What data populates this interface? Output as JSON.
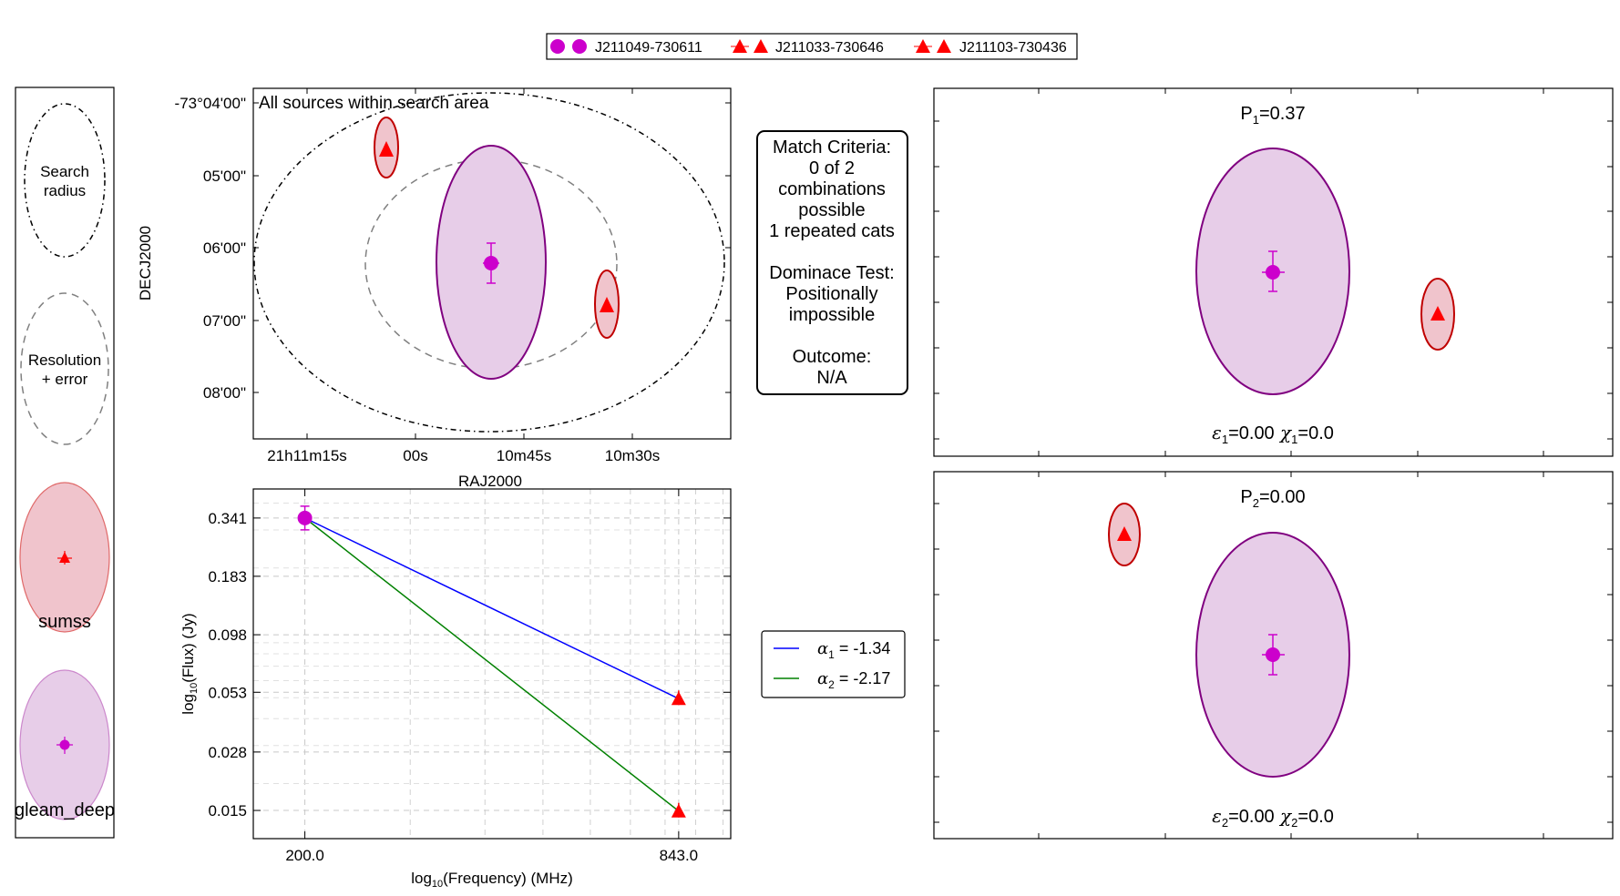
{
  "legend_top": {
    "entries": [
      {
        "label": "J211049-730611",
        "marker": "circle",
        "color": "#cc00cc"
      },
      {
        "label": "J211033-730646",
        "marker": "triangle",
        "color": "#ff0000"
      },
      {
        "label": "J211103-730436",
        "marker": "triangle",
        "color": "#ff0000"
      }
    ]
  },
  "key_panel": {
    "search_label": [
      "Search",
      "radius"
    ],
    "resolution_label": [
      "Resolution",
      "+ error"
    ],
    "sumss_label": "sumss",
    "gleam_label": "gleam_deep"
  },
  "sky_panel": {
    "annotation": "All sources within search area",
    "xlabel": "RAJ2000",
    "ylabel": "DECJ2000",
    "xticks": [
      "21h11m15s",
      "00s",
      "10m45s",
      "10m30s"
    ],
    "yticks": [
      "-73°04'00\"",
      "05'00\"",
      "06'00\"",
      "07'00\"",
      "08'00\""
    ]
  },
  "criteria_box": {
    "lines": [
      "Match Criteria:",
      "0 of 2",
      "combinations",
      "possible",
      "1 repeated cats",
      "",
      "Dominace Test:",
      "Positionally",
      "impossible",
      "",
      "Outcome:",
      "N/A"
    ]
  },
  "combo_panels": [
    {
      "p_label": "P",
      "p_sub": "1",
      "p_value": "=0.37",
      "eps_sub": "1",
      "eps_value": "=0.00",
      "chi_sub": "1",
      "chi_value": "=0.0"
    },
    {
      "p_label": "P",
      "p_sub": "2",
      "p_value": "=0.00",
      "eps_sub": "2",
      "eps_value": "=0.00",
      "chi_sub": "2",
      "chi_value": "=0.0"
    }
  ],
  "sed_legend": [
    {
      "sub": "1",
      "value": " = -1.34",
      "color": "#0000ff"
    },
    {
      "sub": "2",
      "value": " = -2.17",
      "color": "#008000"
    }
  ],
  "colors": {
    "gleam": "#cc00cc",
    "gleam_edge": "#800080",
    "gleam_fill": "#e7cde8",
    "sumss": "#ff0000",
    "sumss_edge": "#b00000",
    "sumss_fill": "#f0c4cc"
  },
  "chart_data": {
    "type": "line",
    "xlabel_pre": "log",
    "xlabel_sub": "10",
    "xlabel_post": "(Frequency) (MHz)",
    "ylabel_pre": "log",
    "ylabel_sub": "10",
    "ylabel_post": "(Flux) (Jy)",
    "log_x": true,
    "log_y": true,
    "x_ticks": [
      200.0,
      843.0
    ],
    "x_tick_labels": [
      "200.0",
      "843.0"
    ],
    "y_ticks": [
      0.341,
      0.183,
      0.098,
      0.053,
      0.028,
      0.015
    ],
    "y_tick_labels": [
      "0.341",
      "0.183",
      "0.098",
      "0.053",
      "0.028",
      "0.015"
    ],
    "grid": true,
    "legend_position": "right",
    "series": [
      {
        "name": "α1 = -1.34",
        "color": "#0000ff",
        "x": [
          200.0,
          843.0
        ],
        "y": [
          0.341,
          0.0495
        ]
      },
      {
        "name": "α2 = -2.17",
        "color": "#008000",
        "x": [
          200.0,
          843.0
        ],
        "y": [
          0.341,
          0.0149
        ]
      }
    ],
    "points": [
      {
        "catalogue": "gleam_deep",
        "x": 200.0,
        "y": 0.341,
        "marker": "circle"
      },
      {
        "catalogue": "sumss",
        "x": 843.0,
        "y": 0.0495,
        "marker": "triangle"
      },
      {
        "catalogue": "sumss",
        "x": 843.0,
        "y": 0.0149,
        "marker": "triangle"
      }
    ]
  }
}
